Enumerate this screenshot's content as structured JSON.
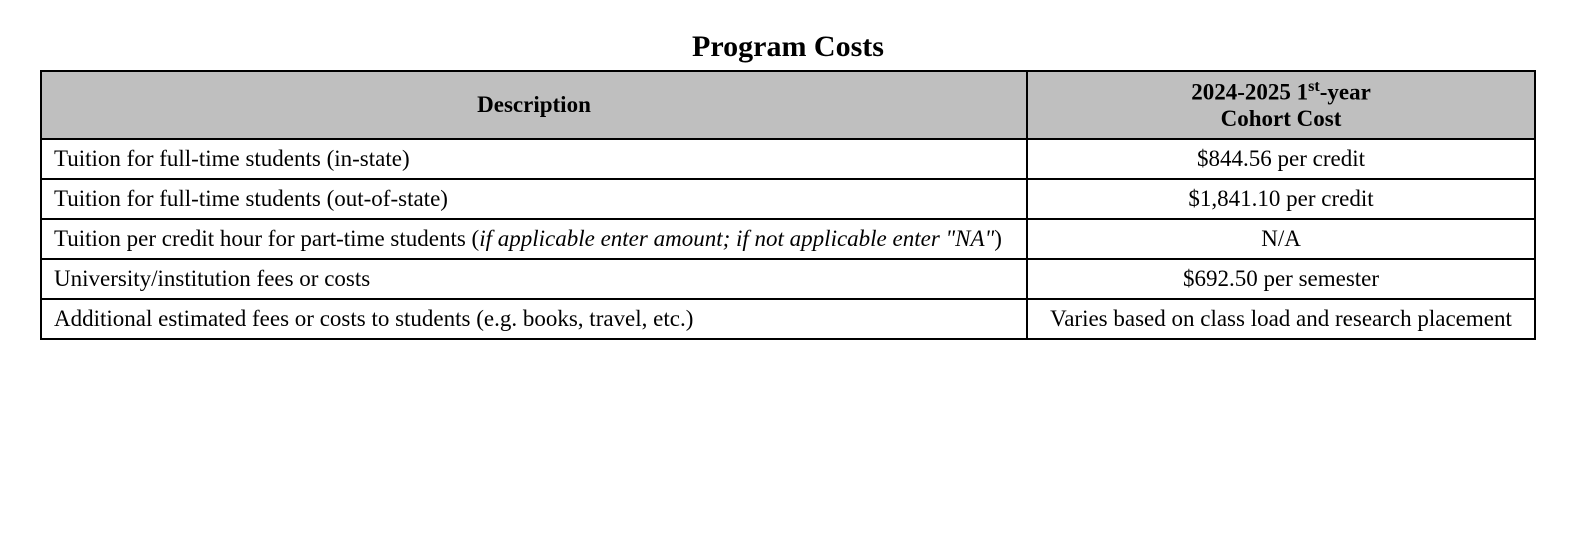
{
  "title": "Program Costs",
  "table": {
    "headers": {
      "description": "Description",
      "cost_prefix": "2024-2025 1",
      "cost_super": "st",
      "cost_suffix": "-year",
      "cost_line2": "Cohort Cost"
    },
    "rows": [
      {
        "desc_plain": "Tuition for full-time students (in-state)",
        "desc_italic": "",
        "cost": "$844.56 per credit"
      },
      {
        "desc_plain": "Tuition for full-time students (out-of-state)",
        "desc_italic": "",
        "cost": "$1,841.10 per credit"
      },
      {
        "desc_plain": "Tuition per credit hour for part-time students (",
        "desc_italic": "if applicable enter amount; if not applicable enter \"NA\"",
        "desc_suffix": ")",
        "cost": "N/A"
      },
      {
        "desc_plain": "University/institution fees or costs",
        "desc_italic": "",
        "cost": "$692.50 per semester"
      },
      {
        "desc_plain": "Additional estimated fees or costs to students (e.g. books, travel, etc.)",
        "desc_italic": "",
        "cost": "Varies based on class load and research placement"
      }
    ]
  },
  "style": {
    "header_bg": "#bfbfbf",
    "border_color": "#000000",
    "font_family": "Times New Roman",
    "title_fontsize": 30,
    "cell_fontsize": 23,
    "col_widths": [
      "66%",
      "34%"
    ]
  }
}
